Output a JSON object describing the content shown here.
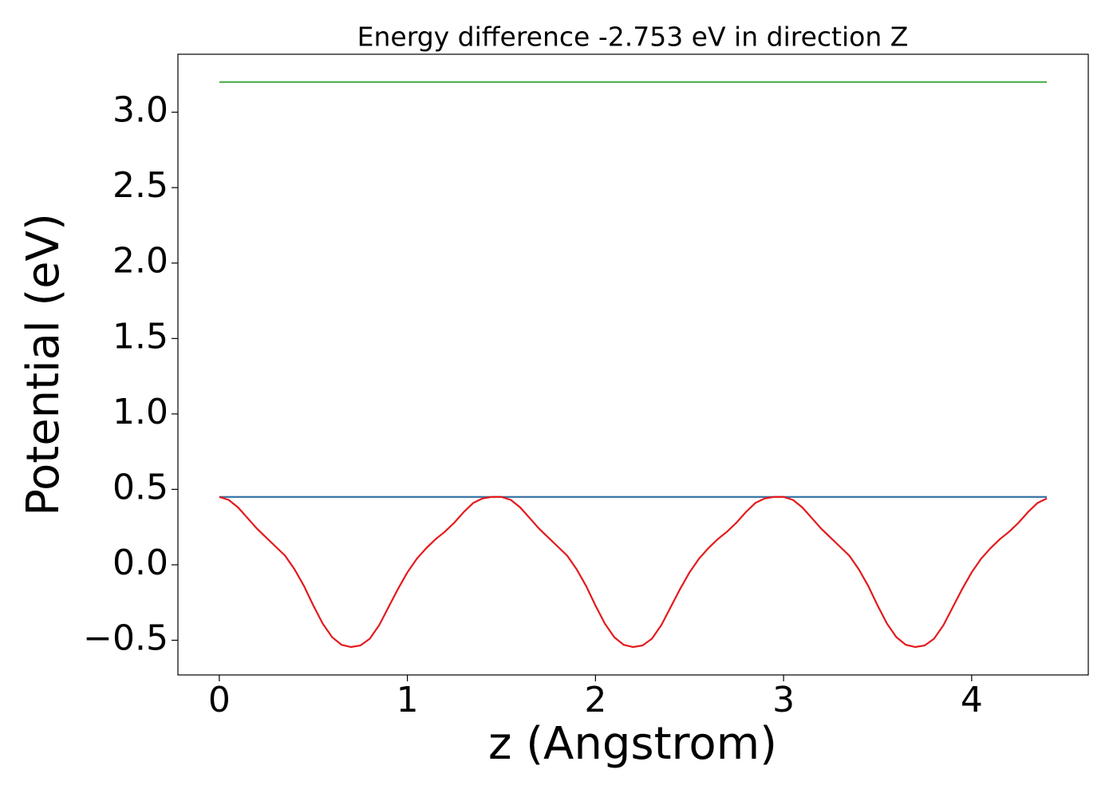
{
  "chart_data": {
    "type": "line",
    "title": "Energy difference -2.753 eV in direction Z",
    "xlabel": "z (Angstrom)",
    "ylabel": "Potential (eV)",
    "xlim": [
      -0.22,
      4.62
    ],
    "ylim": [
      -0.73,
      3.384
    ],
    "xticks": [
      0,
      1,
      2,
      3,
      4
    ],
    "yticks": [
      {
        "value": -0.5,
        "label": "−0.5"
      },
      {
        "value": 0,
        "label": "0.0"
      },
      0.5,
      {
        "value": 1,
        "label": "1.0"
      },
      1.5,
      {
        "value": 2,
        "label": "2.0"
      },
      2.5,
      {
        "value": 3,
        "label": "3.0"
      }
    ],
    "grid": false,
    "series": [
      {
        "color": "#3a78a8",
        "x": [
          0,
          4.4
        ],
        "values": [
          0.45,
          0.45
        ]
      },
      {
        "color": "#4daf4a",
        "x": [
          0,
          4.4
        ],
        "values": [
          3.2,
          3.2
        ]
      },
      {
        "color": "#e41a1c",
        "x": [
          0,
          0.05,
          0.1,
          0.15,
          0.2,
          0.25,
          0.3,
          0.35,
          0.4,
          0.45,
          0.5,
          0.55,
          0.6,
          0.65,
          0.7,
          0.75,
          0.8,
          0.85,
          0.9,
          0.95,
          1,
          1.05,
          1.1,
          1.15,
          1.2,
          1.25,
          1.3,
          1.35,
          1.4,
          1.45,
          1.5,
          1.55,
          1.6,
          1.65,
          1.7,
          1.75,
          1.8,
          1.85,
          1.9,
          1.95,
          2,
          2.05,
          2.1,
          2.15,
          2.2,
          2.25,
          2.3,
          2.35,
          2.4,
          2.45,
          2.5,
          2.55,
          2.6,
          2.65,
          2.7,
          2.75,
          2.8,
          2.85,
          2.9,
          2.95,
          3,
          3.05,
          3.1,
          3.15,
          3.2,
          3.25,
          3.3,
          3.35,
          3.4,
          3.45,
          3.5,
          3.55,
          3.6,
          3.65,
          3.7,
          3.75,
          3.8,
          3.85,
          3.9,
          3.95,
          4,
          4.05,
          4.1,
          4.15,
          4.2,
          4.25,
          4.3,
          4.35,
          4.4
        ],
        "values": [
          0.45,
          0.43,
          0.38,
          0.31,
          0.24,
          0.18,
          0.12,
          0.06,
          -0.03,
          -0.14,
          -0.27,
          -0.39,
          -0.48,
          -0.53,
          -0.545,
          -0.535,
          -0.49,
          -0.4,
          -0.28,
          -0.16,
          -0.05,
          0.04,
          0.11,
          0.17,
          0.22,
          0.28,
          0.35,
          0.41,
          0.44,
          0.45,
          0.45,
          0.43,
          0.38,
          0.31,
          0.24,
          0.18,
          0.12,
          0.06,
          -0.03,
          -0.14,
          -0.27,
          -0.39,
          -0.48,
          -0.53,
          -0.545,
          -0.535,
          -0.49,
          -0.4,
          -0.28,
          -0.16,
          -0.05,
          0.04,
          0.11,
          0.17,
          0.22,
          0.28,
          0.35,
          0.41,
          0.44,
          0.45,
          0.45,
          0.43,
          0.38,
          0.31,
          0.24,
          0.18,
          0.12,
          0.06,
          -0.03,
          -0.14,
          -0.27,
          -0.39,
          -0.48,
          -0.53,
          -0.545,
          -0.535,
          -0.49,
          -0.4,
          -0.28,
          -0.16,
          -0.05,
          0.04,
          0.11,
          0.17,
          0.22,
          0.28,
          0.35,
          0.41,
          0.44
        ]
      }
    ]
  }
}
